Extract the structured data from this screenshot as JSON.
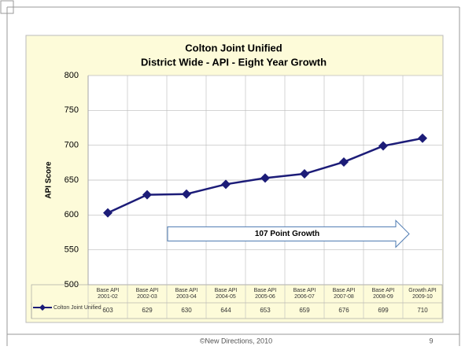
{
  "chart_data": {
    "type": "line",
    "title": "Colton Joint Unified",
    "subtitle": "District Wide - API - Eight Year Growth",
    "y_label": "API Score",
    "categories": [
      "Base API 2001-02",
      "Base API 2002-03",
      "Base API 2003-04",
      "Base API 2004-05",
      "Base API 2005-06",
      "Base API 2006-07",
      "Base API 2007-08",
      "Base API 2008-09",
      "Growth API 2009-10"
    ],
    "series": [
      {
        "name": "Colton Joint Unified",
        "color": "#1c1c78",
        "values": [
          603,
          629,
          630,
          644,
          653,
          659,
          676,
          699,
          710
        ]
      }
    ],
    "ylim": [
      500,
      800
    ],
    "yticks": [
      500,
      550,
      600,
      650,
      700,
      750,
      800
    ],
    "grid": true,
    "annotation": "107  Point Growth"
  },
  "footer": {
    "text": "©New Directions, 2010",
    "page": "9"
  }
}
